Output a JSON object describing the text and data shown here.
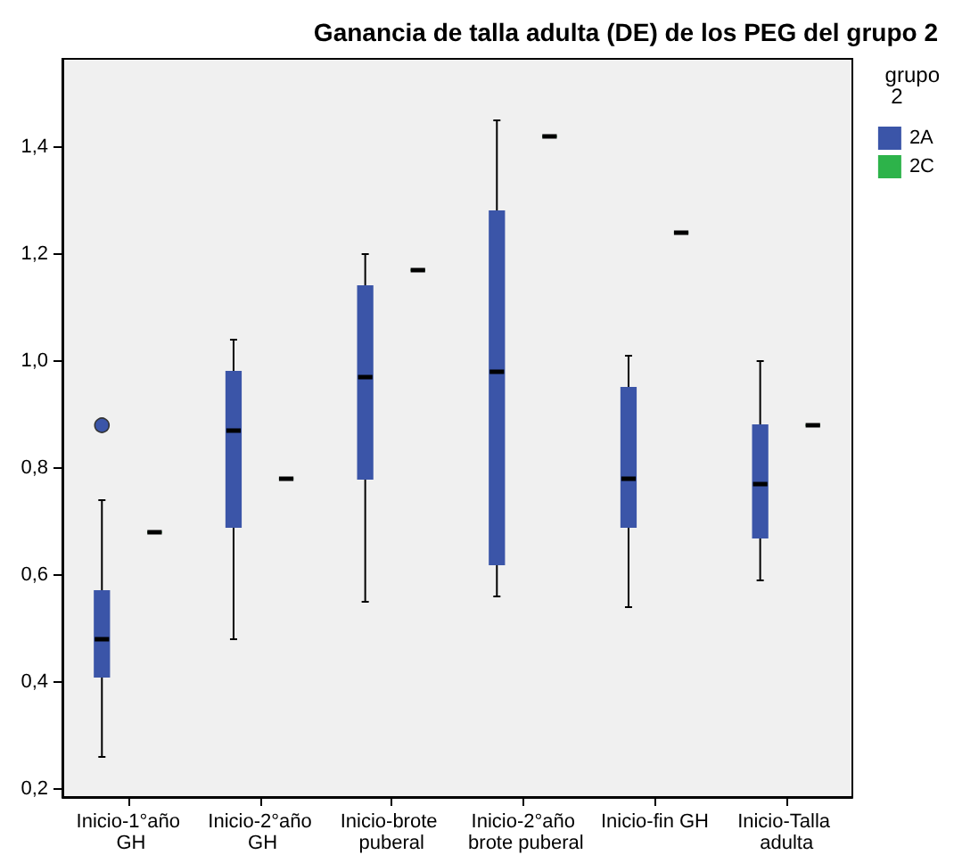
{
  "chart_data": {
    "type": "box",
    "title": "Ganancia de talla adulta (DE) de los PEG del grupo 2",
    "categories": [
      "Inicio-1°año GH",
      "Inicio-2°año GH",
      "Inicio-brote puberal",
      "Inicio-2°año brote puberal",
      "Inicio-fin GH",
      "Inicio-Talla adulta"
    ],
    "legend_title": "grupo 2",
    "legend": "top right",
    "grid": false,
    "ylim": [
      0.185,
      1.565
    ],
    "yticks": [
      {
        "value": 0.2,
        "label": "0,2"
      },
      {
        "value": 0.4,
        "label": "0,4"
      },
      {
        "value": 0.6,
        "label": "0,6"
      },
      {
        "value": 0.8,
        "label": "0,8"
      },
      {
        "value": 1.0,
        "label": "1,0"
      },
      {
        "value": 1.2,
        "label": "1,2"
      },
      {
        "value": 1.4,
        "label": "1,4"
      }
    ],
    "series": [
      {
        "name": "2A",
        "color": "#3b55a8",
        "boxes": [
          {
            "low": 0.26,
            "q1": 0.41,
            "median": 0.48,
            "q3": 0.57,
            "high": 0.74,
            "outliers": [
              0.88
            ]
          },
          {
            "low": 0.48,
            "q1": 0.69,
            "median": 0.87,
            "q3": 0.98,
            "high": 1.04
          },
          {
            "low": 0.55,
            "q1": 0.78,
            "median": 0.97,
            "q3": 1.14,
            "high": 1.2
          },
          {
            "low": 0.56,
            "q1": 0.62,
            "median": 0.98,
            "q3": 1.28,
            "high": 1.45
          },
          {
            "low": 0.54,
            "q1": 0.69,
            "median": 0.78,
            "q3": 0.95,
            "high": 1.01
          },
          {
            "low": 0.59,
            "q1": 0.67,
            "median": 0.77,
            "q3": 0.88,
            "high": 1.0
          }
        ]
      },
      {
        "name": "2C",
        "color": "#2db34a",
        "boxes": [
          {
            "low": 0.68,
            "q1": 0.68,
            "median": 0.68,
            "q3": 0.68,
            "high": 0.68
          },
          {
            "low": 0.78,
            "q1": 0.78,
            "median": 0.78,
            "q3": 0.78,
            "high": 0.78
          },
          {
            "low": 1.17,
            "q1": 1.17,
            "median": 1.17,
            "q3": 1.17,
            "high": 1.17
          },
          {
            "low": 1.42,
            "q1": 1.42,
            "median": 1.42,
            "q3": 1.42,
            "high": 1.42
          },
          {
            "low": 1.24,
            "q1": 1.24,
            "median": 1.24,
            "q3": 1.24,
            "high": 1.24
          },
          {
            "low": 0.88,
            "q1": 0.88,
            "median": 0.88,
            "q3": 0.88,
            "high": 0.88
          }
        ]
      }
    ]
  }
}
